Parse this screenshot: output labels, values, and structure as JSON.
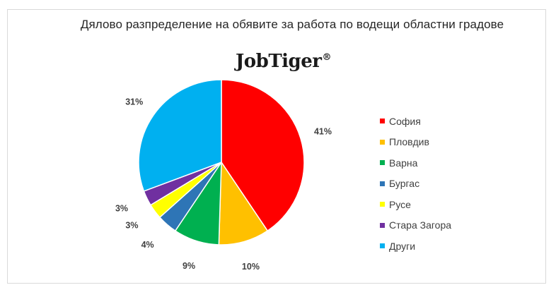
{
  "chart_data": {
    "type": "pie",
    "title": "Дялово разпределение на обявите за работа по водещи областни градове",
    "brand": "JobTiger",
    "brand_mark": "®",
    "legend_position": "right",
    "categories": [
      "София",
      "Пловдив",
      "Варна",
      "Бургас",
      "Русе",
      "Стара Загора",
      "Други"
    ],
    "values": [
      41,
      10,
      9,
      4,
      3,
      3,
      31
    ],
    "labels": [
      "41%",
      "10%",
      "9%",
      "4%",
      "3%",
      "3%",
      "31%"
    ],
    "colors": [
      "#ff0000",
      "#ffc000",
      "#00b050",
      "#2e75b6",
      "#ffff00",
      "#7030a0",
      "#00b0f0"
    ]
  }
}
